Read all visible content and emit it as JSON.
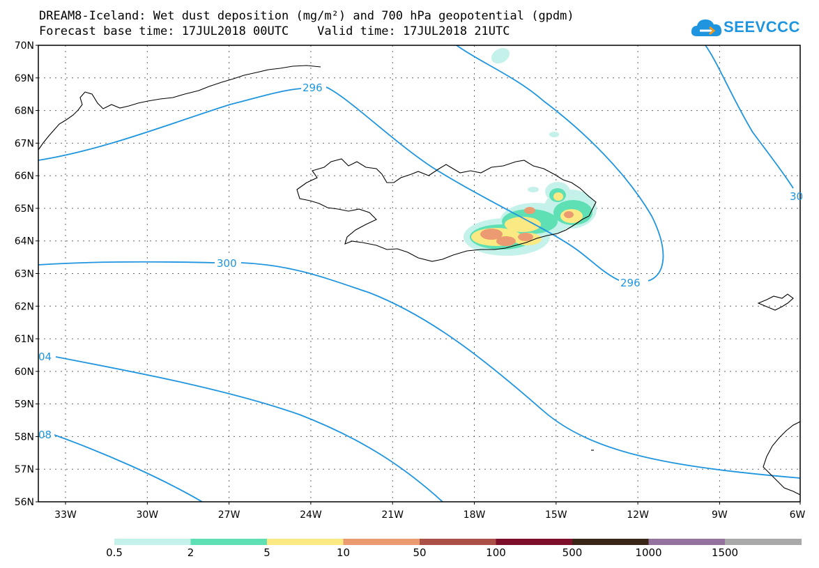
{
  "title_line1": "DREAM8-Iceland: Wet dust deposition (mg/m²) and 700 hPa geopotential (gpdm)",
  "title_line2": "Forecast base time: 17JUL2018 00UTC    Valid time: 17JUL2018 21UTC",
  "logo_text": "SEEVCCC",
  "lat_labels": [
    "70N",
    "69N",
    "68N",
    "67N",
    "66N",
    "65N",
    "64N",
    "63N",
    "62N",
    "61N",
    "60N",
    "59N",
    "58N",
    "57N",
    "56N"
  ],
  "lon_labels": [
    "33W",
    "30W",
    "27W",
    "24W",
    "21W",
    "18W",
    "15W",
    "12W",
    "9W",
    "6W"
  ],
  "contour_labels": {
    "c296_north": "296",
    "c296_east": "296",
    "c300": "300",
    "c304": "04",
    "c308": "08",
    "c300_right": "30"
  },
  "legend": {
    "labels": [
      "0.5",
      "2",
      "5",
      "10",
      "50",
      "100",
      "500",
      "1000",
      "1500"
    ],
    "colors": [
      "#c4f2ea",
      "#5fe0b4",
      "#fbe983",
      "#eb9a71",
      "#ab5046",
      "#7d0f2b",
      "#3a2617",
      "#95719e",
      "#a9a9a9"
    ]
  },
  "colors": {
    "contour": "#1f95e0",
    "coast": "#000000"
  }
}
